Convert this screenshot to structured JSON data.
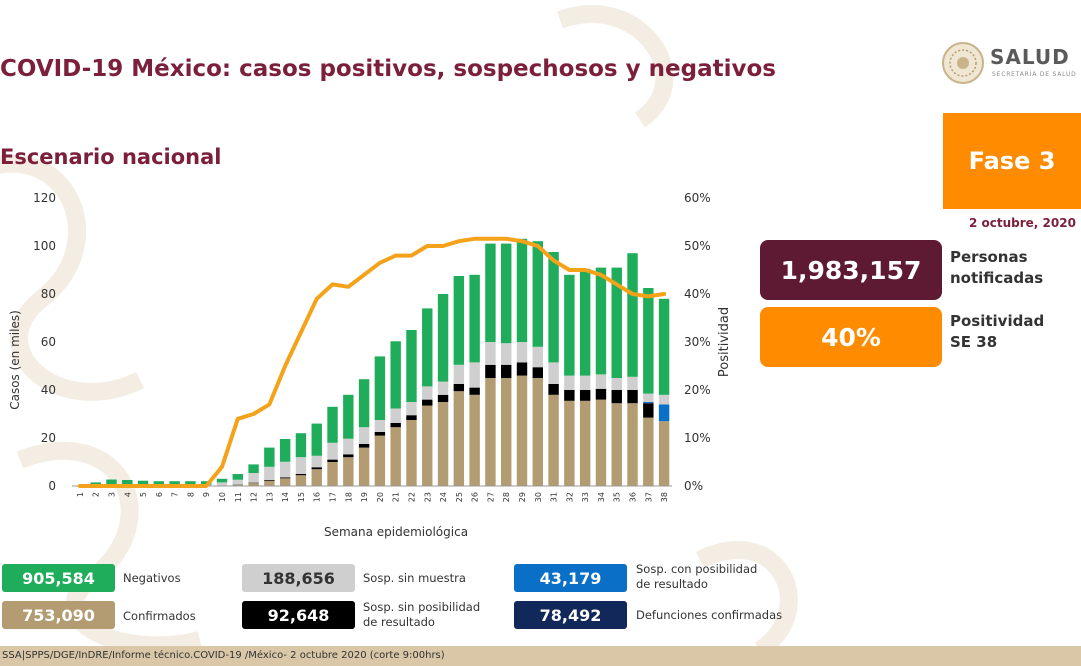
{
  "header": {
    "title": "COVID-19 México: casos positivos, sospechosos y negativos",
    "subtitle": "Escenario nacional"
  },
  "logo": {
    "word": "SALUD",
    "sub": "SECRETARÍA DE SALUD"
  },
  "badge": {
    "phase": "Fase 3",
    "date": "2 octubre, 2020"
  },
  "kpis": {
    "notified_value": "1,983,157",
    "notified_label_1": "Personas",
    "notified_label_2": "notificadas",
    "positivity_value": "40%",
    "positivity_label_1": "Positividad",
    "positivity_label_2": "SE 38"
  },
  "legend": [
    {
      "key": "negativos",
      "value": "905,584",
      "label": "Negativos",
      "color": "#1fad5c",
      "text_color": "#ffffff"
    },
    {
      "key": "confirmados",
      "value": "753,090",
      "label": "Confirmados",
      "color": "#b39b72",
      "text_color": "#ffffff"
    },
    {
      "key": "sin_muestra",
      "value": "188,656",
      "label": "Sosp. sin muestra",
      "color": "#cfcfcf",
      "text_color": "#333333"
    },
    {
      "key": "sin_posibilidad",
      "value": "92,648",
      "label": "Sosp. sin posibilidad de resultado",
      "color": "#000000",
      "text_color": "#ffffff"
    },
    {
      "key": "con_posibilidad",
      "value": "43,179",
      "label": "Sosp. con posibilidad de resultado",
      "color": "#0a6fc7",
      "text_color": "#ffffff"
    },
    {
      "key": "defunciones",
      "value": "78,492",
      "label": "Defunciones confirmadas",
      "color": "#13285a",
      "text_color": "#ffffff"
    }
  ],
  "footer": {
    "text": "SSA|SPPS/DGE/InDRE/Informe técnico.COVID-19 /México- 2 octubre 2020 (corte 9:00hrs)"
  },
  "chart_data": {
    "type": "bar",
    "stacked": true,
    "xlabel": "Semana epidemiológica",
    "ylabel": "Casos (en miles)",
    "y2label": "Positividad",
    "ylim": [
      0,
      120
    ],
    "yticks": [
      0,
      20,
      40,
      60,
      80,
      100,
      120
    ],
    "y2lim": [
      0,
      60
    ],
    "y2ticks": [
      "0%",
      "10%",
      "20%",
      "30%",
      "40%",
      "50%",
      "60%"
    ],
    "grid": false,
    "categories": [
      "1",
      "2",
      "3",
      "4",
      "5",
      "6",
      "7",
      "8",
      "9",
      "10",
      "11",
      "12",
      "13",
      "14",
      "15",
      "16",
      "17",
      "18",
      "19",
      "20",
      "21",
      "22",
      "23",
      "24",
      "25",
      "26",
      "27",
      "28",
      "29",
      "30",
      "31",
      "32",
      "33",
      "34",
      "35",
      "36",
      "37",
      "38"
    ],
    "series": [
      {
        "key": "confirmados",
        "color": "#b39b72",
        "values": [
          0,
          0,
          0,
          0,
          0,
          0,
          0,
          0,
          0,
          0.2,
          0.5,
          1.2,
          2.2,
          3.2,
          4.5,
          7,
          10,
          12,
          16,
          21,
          24.5,
          27.5,
          33.5,
          35,
          39.5,
          38,
          45,
          45,
          46,
          45,
          38,
          35.5,
          35.5,
          36,
          34.5,
          34.5,
          28.5,
          27
        ]
      },
      {
        "key": "sin_posibilidad",
        "color": "#000000",
        "values": [
          0,
          0,
          0,
          0,
          0,
          0,
          0,
          0,
          0,
          0,
          0.1,
          0.2,
          0.3,
          0.4,
          0.5,
          0.8,
          1,
          1.2,
          1.5,
          1.5,
          1.8,
          2,
          2.5,
          3,
          3,
          3,
          5.5,
          5.5,
          5.5,
          4.5,
          4.5,
          4.5,
          4.5,
          4.5,
          5.5,
          5.5,
          6,
          0
        ]
      },
      {
        "key": "con_posibilidad",
        "color": "#0a6fc7",
        "values": [
          0,
          0,
          0,
          0,
          0,
          0,
          0,
          0,
          0,
          0,
          0,
          0,
          0,
          0,
          0,
          0,
          0,
          0,
          0,
          0,
          0,
          0,
          0,
          0,
          0,
          0,
          0,
          0,
          0,
          0,
          0,
          0,
          0,
          0,
          0,
          0,
          0.5,
          7
        ]
      },
      {
        "key": "sin_muestra",
        "color": "#cfcfcf",
        "values": [
          0,
          0.3,
          0.5,
          0.5,
          0.4,
          0.4,
          0.4,
          0.4,
          0.5,
          1.3,
          2,
          4,
          5.5,
          6.5,
          7,
          4.8,
          7,
          6.5,
          7,
          5,
          6,
          5.5,
          5.5,
          5.5,
          8,
          10.5,
          9.5,
          9,
          8.5,
          8.5,
          9,
          6,
          6,
          6,
          5,
          5.5,
          3.5,
          4
        ]
      },
      {
        "key": "negativos",
        "color": "#1fad5c",
        "values": [
          0,
          1.2,
          2.2,
          2,
          1.8,
          1.6,
          1.6,
          1.6,
          1.5,
          1.5,
          2.4,
          3.6,
          8,
          9.5,
          10,
          13.4,
          15,
          18.3,
          20,
          26.5,
          28,
          30,
          32.5,
          36.5,
          37,
          36.5,
          41,
          41.5,
          43,
          44,
          46,
          42,
          44.5,
          44.5,
          46,
          51.5,
          44,
          40
        ]
      }
    ],
    "line": {
      "name": "Positividad",
      "color": "#f5a21b",
      "unit": "%",
      "values": [
        0,
        0,
        0,
        0,
        0,
        0,
        0,
        0,
        0,
        4,
        14,
        15,
        17,
        25,
        32,
        39,
        42,
        41.5,
        44,
        46.5,
        48,
        48,
        50,
        50,
        51,
        51.5,
        51.5,
        51.5,
        51,
        50,
        47,
        45,
        45,
        44,
        42,
        40,
        39.5,
        40
      ]
    }
  }
}
